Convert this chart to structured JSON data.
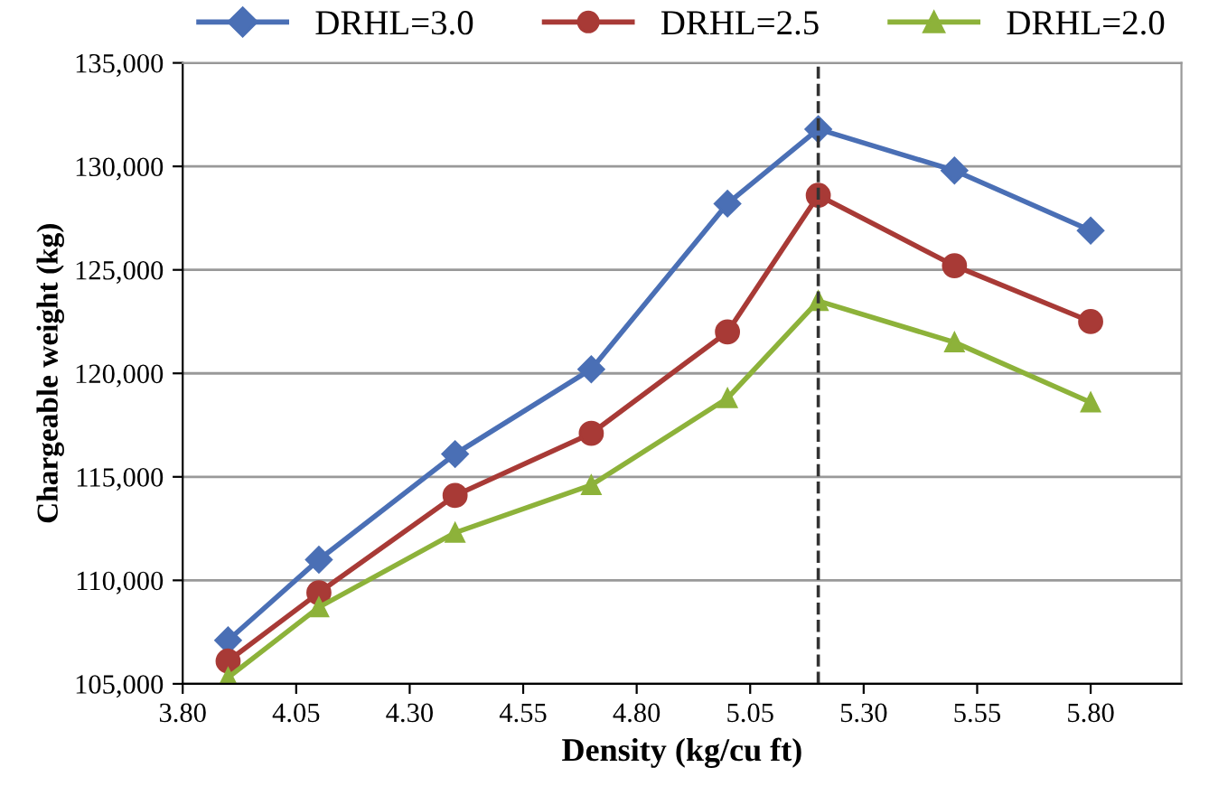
{
  "chart_data": {
    "type": "line",
    "xlabel": "Density (kg/cu ft)",
    "ylabel": "Chargeable weight (kg)",
    "x": [
      3.9,
      4.1,
      4.4,
      4.7,
      5.0,
      5.2,
      5.5,
      5.8
    ],
    "series": [
      {
        "name": "DRHL=3.0",
        "color": "#4a6fb5",
        "marker": "diamond",
        "values": [
          107100,
          111000,
          116100,
          120200,
          128200,
          131800,
          129800,
          126900
        ]
      },
      {
        "name": "DRHL=2.5",
        "color": "#a83a36",
        "marker": "circle",
        "values": [
          106100,
          109400,
          114100,
          117100,
          122000,
          128600,
          125200,
          122500
        ]
      },
      {
        "name": "DRHL=2.0",
        "color": "#8db23a",
        "marker": "triangle",
        "values": [
          105300,
          108700,
          112300,
          114600,
          118800,
          123500,
          121500,
          118600
        ]
      }
    ],
    "xlim": [
      3.8,
      6.0
    ],
    "xticks": [
      {
        "value": 3.8,
        "label": "3.80"
      },
      {
        "value": 4.05,
        "label": "4.05"
      },
      {
        "value": 4.3,
        "label": "4.30"
      },
      {
        "value": 4.55,
        "label": "4.55"
      },
      {
        "value": 4.8,
        "label": "4.80"
      },
      {
        "value": 5.05,
        "label": "5.05"
      },
      {
        "value": 5.3,
        "label": "5.30"
      },
      {
        "value": 5.55,
        "label": "5.55"
      },
      {
        "value": 5.8,
        "label": "5.80"
      }
    ],
    "ylim": [
      105000,
      135000
    ],
    "yticks": [
      {
        "value": 105000,
        "label": "105,000"
      },
      {
        "value": 110000,
        "label": "110,000"
      },
      {
        "value": 115000,
        "label": "115,000"
      },
      {
        "value": 120000,
        "label": "120,000"
      },
      {
        "value": 125000,
        "label": "125,000"
      },
      {
        "value": 130000,
        "label": "130,000"
      },
      {
        "value": 135000,
        "label": "135,000"
      }
    ],
    "ref_lines": [
      {
        "axis": "x",
        "value": 5.2,
        "color": "#333333",
        "line_style": "dashed"
      }
    ],
    "grid": "y",
    "legend": "top",
    "line_style": "solid"
  }
}
